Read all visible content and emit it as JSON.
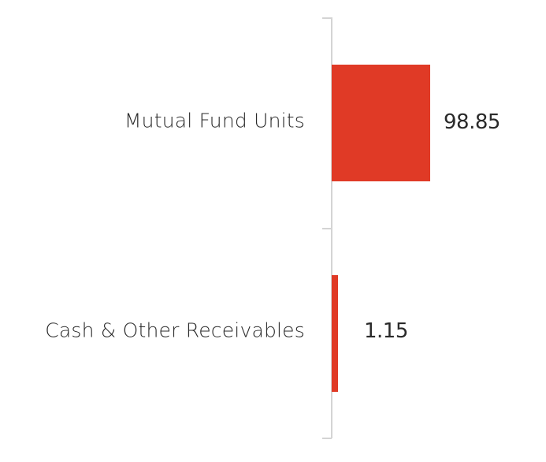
{
  "chart_data": {
    "type": "bar",
    "orientation": "horizontal",
    "title": "",
    "xlabel": "",
    "ylabel": "",
    "categories": [
      "Mutual Fund Units",
      "Cash & Other Receivables"
    ],
    "values": [
      98.85,
      1.15
    ],
    "value_labels": [
      "98.85",
      "1.15"
    ],
    "xlim": [
      0,
      98.85
    ],
    "grid": false,
    "legend": null,
    "bar_color": "#e03a26",
    "axis_color": "#d4d4d4"
  }
}
